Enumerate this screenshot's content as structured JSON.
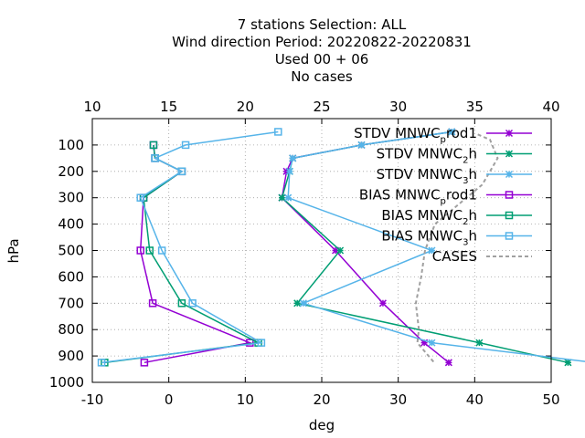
{
  "chart_data": {
    "type": "line",
    "title": [
      "7 stations Selection: ALL",
      "Wind direction  Period: 20220822-20220831",
      "Used  00 + 06",
      "No cases"
    ],
    "xlabel": "deg",
    "ylabel": "hPa",
    "x_bottom_ticks": [
      "-10",
      "0",
      "10",
      "20",
      "30",
      "40",
      "50"
    ],
    "x_top_ticks": [
      "10",
      "15",
      "20",
      "25",
      "30",
      "35",
      "40"
    ],
    "y_ticks": [
      "100",
      "200",
      "300",
      "400",
      "500",
      "600",
      "700",
      "800",
      "900",
      "1000"
    ],
    "xlim_bottom": [
      -10,
      50
    ],
    "xlim_top": [
      10,
      40
    ],
    "ylim": [
      1000,
      0
    ],
    "grid": true,
    "y_reversed": true,
    "legend_position": "top-right",
    "series": [
      {
        "name": "STDV MNWC",
        "sub": "p",
        "suffix": "rod1",
        "axis": "top",
        "marker": "star",
        "color": "#9400d3",
        "points": [
          [
            33.5,
            50
          ],
          [
            27.6,
            100
          ],
          [
            23.1,
            150
          ],
          [
            22.7,
            200
          ],
          [
            22.4,
            300
          ],
          [
            25.9,
            500
          ],
          [
            29,
            700
          ],
          [
            31.7,
            850
          ],
          [
            33.3,
            925
          ]
        ]
      },
      {
        "name": "STDV MNWC",
        "sub": "2",
        "suffix": "h",
        "axis": "top",
        "marker": "star",
        "color": "#009e73",
        "points": [
          [
            33.5,
            50
          ],
          [
            27.6,
            100
          ],
          [
            23.1,
            150
          ],
          [
            22.9,
            200
          ],
          [
            22.4,
            300
          ],
          [
            26.2,
            500
          ],
          [
            23.4,
            700
          ],
          [
            35.3,
            850
          ],
          [
            41.1,
            925
          ]
        ]
      },
      {
        "name": "STDV MNWC",
        "sub": "3",
        "suffix": "h",
        "axis": "top",
        "marker": "star",
        "color": "#56b4e9",
        "points": [
          [
            33.5,
            50
          ],
          [
            27.6,
            100
          ],
          [
            23.1,
            150
          ],
          [
            22.9,
            200
          ],
          [
            22.8,
            300
          ],
          [
            32.2,
            500
          ],
          [
            23.8,
            700
          ],
          [
            32.2,
            850
          ],
          [
            42.8,
            925
          ]
        ]
      },
      {
        "name": "BIAS MNWC",
        "sub": "p",
        "suffix": "rod1",
        "axis": "bottom",
        "marker": "square",
        "color": "#9400d3",
        "points": [
          [
            -2,
            100
          ],
          [
            -1.8,
            150
          ],
          [
            1.7,
            200
          ],
          [
            -3.3,
            300
          ],
          [
            -3.7,
            500
          ],
          [
            -2.1,
            700
          ],
          [
            10.6,
            850
          ],
          [
            -3.2,
            925
          ]
        ]
      },
      {
        "name": "BIAS MNWC",
        "sub": "2",
        "suffix": "h",
        "axis": "bottom",
        "marker": "square",
        "color": "#009e73",
        "points": [
          [
            -2,
            100
          ],
          [
            -1.8,
            150
          ],
          [
            1.7,
            200
          ],
          [
            -3.3,
            300
          ],
          [
            -2.5,
            500
          ],
          [
            1.7,
            700
          ],
          [
            11.7,
            850
          ],
          [
            -8.4,
            925
          ]
        ]
      },
      {
        "name": "BIAS MNWC",
        "sub": "3",
        "suffix": "h",
        "axis": "bottom",
        "marker": "square",
        "color": "#56b4e9",
        "points": [
          [
            14.3,
            50
          ],
          [
            2.2,
            100
          ],
          [
            -1.8,
            150
          ],
          [
            1.7,
            200
          ],
          [
            -3.7,
            300
          ],
          [
            -0.9,
            500
          ],
          [
            3.1,
            700
          ],
          [
            12.1,
            850
          ],
          [
            -8.8,
            925
          ]
        ]
      },
      {
        "name": "CASES",
        "sub": "",
        "suffix": "",
        "axis": "bottom",
        "marker": "none",
        "color": "#a0a0a0",
        "dashed": true,
        "points": [
          [
            40.4,
            60
          ],
          [
            42,
            80
          ],
          [
            43,
            150
          ],
          [
            42,
            200
          ],
          [
            41,
            250
          ],
          [
            34.8,
            400
          ],
          [
            33.5,
            500
          ],
          [
            33,
            600
          ],
          [
            32.3,
            700
          ],
          [
            32.7,
            800
          ],
          [
            32.5,
            850
          ],
          [
            34.7,
            925
          ]
        ]
      }
    ]
  }
}
